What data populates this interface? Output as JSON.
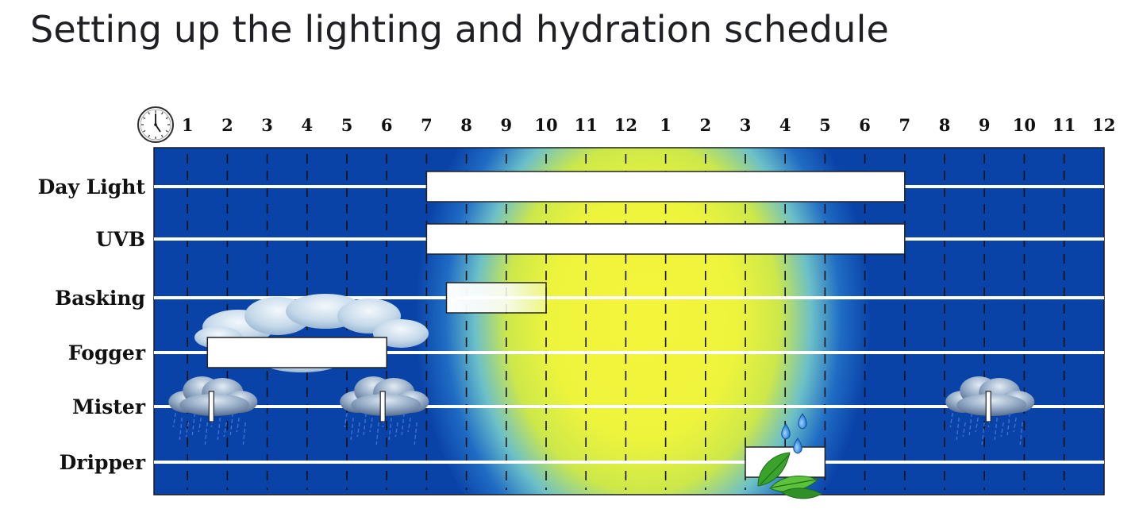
{
  "title": "Setting up the lighting and hydration schedule",
  "hours": [
    "1",
    "2",
    "3",
    "4",
    "5",
    "6",
    "7",
    "8",
    "9",
    "10",
    "11",
    "12",
    "1",
    "2",
    "3",
    "4",
    "5",
    "6",
    "7",
    "8",
    "9",
    "10",
    "11",
    "12"
  ],
  "rows": [
    {
      "label": "Day Light"
    },
    {
      "label": "UVB"
    },
    {
      "label": "Basking"
    },
    {
      "label": "Fogger"
    },
    {
      "label": "Mister"
    },
    {
      "label": "Dripper"
    }
  ],
  "schedule": [
    {
      "row": 0,
      "start": 7,
      "end": 19,
      "style": "solid"
    },
    {
      "row": 1,
      "start": 7,
      "end": 19,
      "style": "solid"
    },
    {
      "row": 2,
      "start": 7.5,
      "end": 10,
      "style": "fade"
    },
    {
      "row": 3,
      "start": 1.5,
      "end": 6,
      "style": "solid"
    },
    {
      "row": 4,
      "at": 1.6,
      "style": "tick"
    },
    {
      "row": 4,
      "at": 5.9,
      "style": "tick"
    },
    {
      "row": 4,
      "at": 21.1,
      "style": "tick"
    },
    {
      "row": 5,
      "start": 15,
      "end": 17,
      "style": "solid"
    }
  ],
  "icons": {
    "clock": "clock-icon",
    "cloud": "cloud-icon",
    "rain": "rain-cloud-icon",
    "drops": "water-drop-icon",
    "leaves": "leaf-icon"
  },
  "colors": {
    "night": "#0a43a8",
    "dawn": "#2e8fd6",
    "day": "#f2f23a",
    "line": "#ffffff"
  }
}
